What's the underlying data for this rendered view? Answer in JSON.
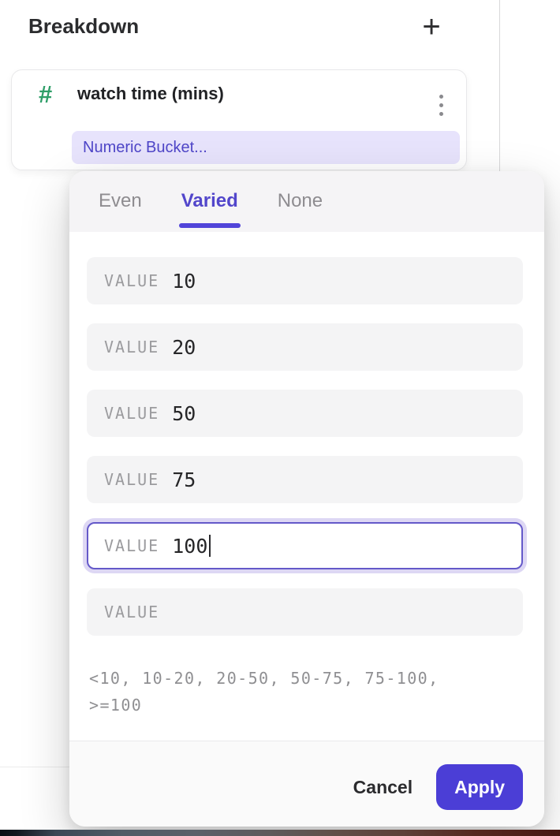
{
  "colors": {
    "accent": "#4b3ed6",
    "accent_underline": "#5144d9",
    "pill_bg": "#e7e3fc",
    "pill_text": "#4f46c8",
    "hash_green": "#2f9e68",
    "focus_ring": "#ddd7f4",
    "focus_border": "#6459c9"
  },
  "header": {
    "title": "Breakdown",
    "add_label": "+"
  },
  "card": {
    "type_icon": "#",
    "title": "watch time (mins)",
    "bucket_label": "Numeric Bucket..."
  },
  "popup": {
    "tabs": [
      {
        "label": "Even"
      },
      {
        "label": "Varied"
      },
      {
        "label": "None"
      }
    ],
    "active_tab": "Varied",
    "rows": [
      {
        "label": "VALUE",
        "value": "10"
      },
      {
        "label": "VALUE",
        "value": "20"
      },
      {
        "label": "VALUE",
        "value": "50"
      },
      {
        "label": "VALUE",
        "value": "75"
      },
      {
        "label": "VALUE",
        "value": "100"
      },
      {
        "label": "VALUE",
        "value": ""
      }
    ],
    "preview": {
      "line1": "<10, 10-20, 20-50, 50-75, 75-100,",
      "line2": ">=100"
    },
    "cancel_label": "Cancel",
    "apply_label": "Apply"
  }
}
